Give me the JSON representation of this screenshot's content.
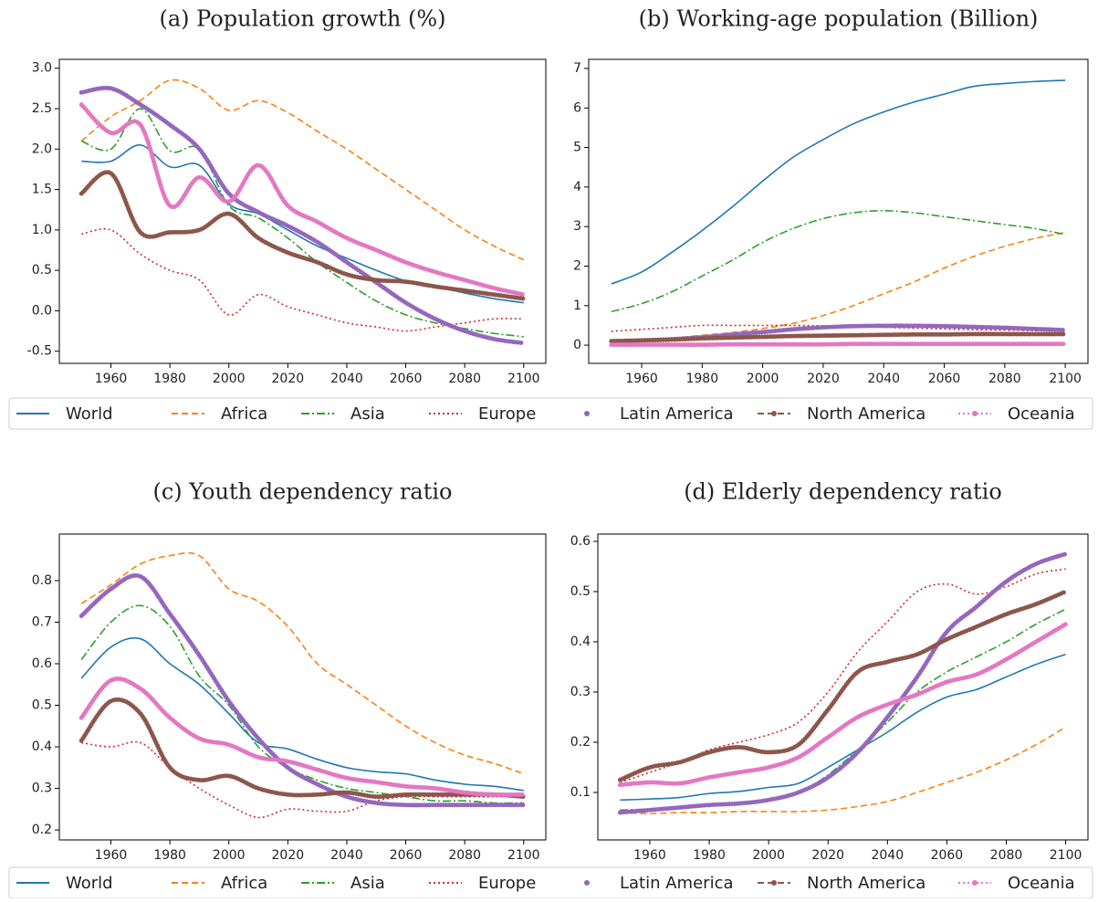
{
  "chart_data": [
    {
      "type": "line",
      "title": "(a) Population growth (%)",
      "x": [
        1950,
        1960,
        1970,
        1980,
        1990,
        2000,
        2010,
        2020,
        2030,
        2040,
        2050,
        2060,
        2070,
        2080,
        2090,
        2100
      ],
      "xlim": [
        1942.5,
        2107.5
      ],
      "xticks": [
        1960,
        1980,
        2000,
        2020,
        2040,
        2060,
        2080,
        2100
      ],
      "ylim": [
        -0.65,
        3.11
      ],
      "yticks": [
        -0.5,
        {
          "value": 0,
          "label": "0.0"
        },
        0.5,
        {
          "value": 1,
          "label": "1.0"
        },
        1.5,
        {
          "value": 2,
          "label": "2.0"
        },
        2.5,
        {
          "value": 3,
          "label": "3.0"
        }
      ],
      "legend": "lower center",
      "series": [
        {
          "name": "World",
          "color": "#1f77b4",
          "linestyle": "solid",
          "marker": false,
          "values": [
            1.85,
            1.85,
            2.05,
            1.78,
            1.8,
            1.32,
            1.2,
            1.0,
            0.8,
            0.65,
            0.5,
            0.37,
            0.3,
            0.22,
            0.15,
            0.1
          ]
        },
        {
          "name": "Africa",
          "color": "#ff7f0e",
          "linestyle": "dashed",
          "marker": false,
          "values": [
            2.1,
            2.4,
            2.6,
            2.85,
            2.75,
            2.48,
            2.6,
            2.45,
            2.22,
            2.0,
            1.75,
            1.5,
            1.25,
            1.0,
            0.8,
            0.63
          ]
        },
        {
          "name": "Asia",
          "color": "#2ca02c",
          "linestyle": "dashdot",
          "marker": false,
          "values": [
            2.1,
            2.0,
            2.5,
            1.98,
            2.0,
            1.3,
            1.15,
            0.9,
            0.6,
            0.35,
            0.12,
            -0.05,
            -0.15,
            -0.22,
            -0.28,
            -0.32
          ]
        },
        {
          "name": "Europe",
          "color": "#d62728",
          "linestyle": "dotted",
          "marker": false,
          "values": [
            0.95,
            1.0,
            0.7,
            0.5,
            0.38,
            -0.05,
            0.2,
            0.05,
            -0.05,
            -0.15,
            -0.2,
            -0.25,
            -0.2,
            -0.15,
            -0.1,
            -0.1
          ]
        },
        {
          "name": "Latin America",
          "color": "#9467bd",
          "linestyle": "none",
          "marker": true,
          "values": [
            2.7,
            2.75,
            2.55,
            2.3,
            2.0,
            1.45,
            1.22,
            1.05,
            0.85,
            0.6,
            0.35,
            0.1,
            -0.1,
            -0.25,
            -0.35,
            -0.4
          ]
        },
        {
          "name": "North America",
          "color": "#8c564b",
          "linestyle": "dashed",
          "marker": true,
          "values": [
            1.45,
            1.7,
            0.97,
            0.97,
            1.0,
            1.2,
            0.9,
            0.72,
            0.6,
            0.45,
            0.38,
            0.36,
            0.3,
            0.25,
            0.2,
            0.15
          ]
        },
        {
          "name": "Oceania",
          "color": "#e377c2",
          "linestyle": "dotted",
          "marker": true,
          "values": [
            2.55,
            2.2,
            2.3,
            1.3,
            1.65,
            1.35,
            1.8,
            1.3,
            1.1,
            0.9,
            0.75,
            0.6,
            0.48,
            0.38,
            0.28,
            0.2
          ]
        }
      ]
    },
    {
      "type": "line",
      "title": "(b) Working-age population (Billion)",
      "x": [
        1950,
        1960,
        1970,
        1980,
        1990,
        2000,
        2010,
        2020,
        2030,
        2040,
        2050,
        2060,
        2070,
        2080,
        2090,
        2100
      ],
      "xlim": [
        1942.5,
        2107.5
      ],
      "xticks": [
        1960,
        1980,
        2000,
        2020,
        2040,
        2060,
        2080,
        2100
      ],
      "ylim": [
        -0.46,
        7.23
      ],
      "yticks": [
        0,
        1,
        2,
        3,
        4,
        5,
        6,
        7
      ],
      "series": [
        {
          "name": "World",
          "color": "#1f77b4",
          "linestyle": "solid",
          "marker": false,
          "values": [
            1.55,
            1.85,
            2.35,
            2.9,
            3.5,
            4.15,
            4.75,
            5.2,
            5.6,
            5.9,
            6.15,
            6.35,
            6.55,
            6.62,
            6.67,
            6.7
          ]
        },
        {
          "name": "Africa",
          "color": "#ff7f0e",
          "linestyle": "dashed",
          "marker": false,
          "values": [
            0.12,
            0.15,
            0.18,
            0.25,
            0.32,
            0.42,
            0.55,
            0.75,
            1.0,
            1.3,
            1.6,
            1.95,
            2.25,
            2.5,
            2.7,
            2.85
          ]
        },
        {
          "name": "Asia",
          "color": "#2ca02c",
          "linestyle": "dashdot",
          "marker": false,
          "values": [
            0.85,
            1.05,
            1.35,
            1.75,
            2.15,
            2.6,
            2.95,
            3.2,
            3.35,
            3.4,
            3.35,
            3.25,
            3.15,
            3.05,
            2.95,
            2.8
          ]
        },
        {
          "name": "Europe",
          "color": "#d62728",
          "linestyle": "dotted",
          "marker": false,
          "values": [
            0.35,
            0.4,
            0.45,
            0.5,
            0.5,
            0.5,
            0.5,
            0.49,
            0.47,
            0.45,
            0.43,
            0.41,
            0.39,
            0.38,
            0.37,
            0.36
          ]
        },
        {
          "name": "Latin America",
          "color": "#9467bd",
          "linestyle": "none",
          "marker": true,
          "values": [
            0.1,
            0.12,
            0.15,
            0.2,
            0.27,
            0.33,
            0.4,
            0.45,
            0.48,
            0.49,
            0.49,
            0.48,
            0.46,
            0.44,
            0.41,
            0.38
          ]
        },
        {
          "name": "North America",
          "color": "#8c564b",
          "linestyle": "dashed",
          "marker": true,
          "values": [
            0.1,
            0.12,
            0.14,
            0.17,
            0.19,
            0.21,
            0.23,
            0.24,
            0.25,
            0.26,
            0.27,
            0.27,
            0.28,
            0.28,
            0.28,
            0.28
          ]
        },
        {
          "name": "Oceania",
          "color": "#e377c2",
          "linestyle": "dotted",
          "marker": true,
          "values": [
            0.01,
            0.01,
            0.01,
            0.01,
            0.02,
            0.02,
            0.02,
            0.02,
            0.03,
            0.03,
            0.03,
            0.03,
            0.03,
            0.03,
            0.03,
            0.03
          ]
        }
      ]
    },
    {
      "type": "line",
      "title": "(c) Youth dependency ratio",
      "x": [
        1950,
        1960,
        1970,
        1980,
        1990,
        2000,
        2010,
        2020,
        2030,
        2040,
        2050,
        2060,
        2070,
        2080,
        2090,
        2100
      ],
      "xlim": [
        1942.5,
        2107.5
      ],
      "xticks": [
        1960,
        1980,
        2000,
        2020,
        2040,
        2060,
        2080,
        2100
      ],
      "ylim": [
        0.176,
        0.912
      ],
      "yticks": [
        0.2,
        0.3,
        0.4,
        0.5,
        0.6,
        0.7,
        0.8
      ],
      "legend": "lower center",
      "series": [
        {
          "name": "World",
          "color": "#1f77b4",
          "linestyle": "solid",
          "marker": false,
          "values": [
            0.565,
            0.64,
            0.66,
            0.6,
            0.55,
            0.48,
            0.41,
            0.395,
            0.37,
            0.35,
            0.34,
            0.335,
            0.32,
            0.31,
            0.305,
            0.295
          ]
        },
        {
          "name": "Africa",
          "color": "#ff7f0e",
          "linestyle": "dashed",
          "marker": false,
          "values": [
            0.745,
            0.79,
            0.84,
            0.86,
            0.86,
            0.78,
            0.75,
            0.69,
            0.6,
            0.55,
            0.5,
            0.45,
            0.41,
            0.38,
            0.36,
            0.335
          ]
        },
        {
          "name": "Asia",
          "color": "#2ca02c",
          "linestyle": "dashdot",
          "marker": false,
          "values": [
            0.61,
            0.7,
            0.74,
            0.69,
            0.57,
            0.5,
            0.4,
            0.35,
            0.32,
            0.3,
            0.29,
            0.28,
            0.27,
            0.27,
            0.265,
            0.265
          ]
        },
        {
          "name": "Europe",
          "color": "#d62728",
          "linestyle": "dotted",
          "marker": false,
          "values": [
            0.41,
            0.4,
            0.41,
            0.35,
            0.3,
            0.26,
            0.23,
            0.25,
            0.245,
            0.245,
            0.27,
            0.28,
            0.28,
            0.28,
            0.28,
            0.28
          ]
        },
        {
          "name": "Latin America",
          "color": "#9467bd",
          "linestyle": "none",
          "marker": true,
          "values": [
            0.715,
            0.78,
            0.81,
            0.72,
            0.62,
            0.51,
            0.42,
            0.35,
            0.31,
            0.28,
            0.265,
            0.26,
            0.26,
            0.26,
            0.26,
            0.26
          ]
        },
        {
          "name": "North America",
          "color": "#8c564b",
          "linestyle": "dashed",
          "marker": true,
          "values": [
            0.415,
            0.51,
            0.48,
            0.35,
            0.32,
            0.33,
            0.3,
            0.285,
            0.285,
            0.29,
            0.28,
            0.285,
            0.285,
            0.285,
            0.285,
            0.28
          ]
        },
        {
          "name": "Oceania",
          "color": "#e377c2",
          "linestyle": "dotted",
          "marker": true,
          "values": [
            0.47,
            0.56,
            0.54,
            0.47,
            0.42,
            0.405,
            0.375,
            0.365,
            0.345,
            0.325,
            0.315,
            0.305,
            0.3,
            0.29,
            0.285,
            0.285
          ]
        }
      ]
    },
    {
      "type": "line",
      "title": "(d) Elderly dependency ratio",
      "x": [
        1950,
        1960,
        1970,
        1980,
        1990,
        2000,
        2010,
        2020,
        2030,
        2040,
        2050,
        2060,
        2070,
        2080,
        2090,
        2100
      ],
      "xlim": [
        1942.5,
        2107.5
      ],
      "xticks": [
        1960,
        1980,
        2000,
        2020,
        2040,
        2060,
        2080,
        2100
      ],
      "ylim": [
        0.0055,
        0.6145
      ],
      "yticks": [
        0.1,
        0.2,
        0.3,
        0.4,
        0.5,
        0.6
      ],
      "series": [
        {
          "name": "World",
          "color": "#1f77b4",
          "linestyle": "solid",
          "marker": false,
          "values": [
            0.085,
            0.087,
            0.09,
            0.098,
            0.102,
            0.11,
            0.118,
            0.15,
            0.185,
            0.22,
            0.26,
            0.29,
            0.305,
            0.33,
            0.355,
            0.375
          ]
        },
        {
          "name": "Africa",
          "color": "#ff7f0e",
          "linestyle": "dashed",
          "marker": false,
          "values": [
            0.06,
            0.058,
            0.06,
            0.06,
            0.062,
            0.062,
            0.062,
            0.065,
            0.072,
            0.082,
            0.1,
            0.12,
            0.14,
            0.165,
            0.195,
            0.23
          ]
        },
        {
          "name": "Asia",
          "color": "#2ca02c",
          "linestyle": "dashdot",
          "marker": false,
          "values": [
            0.065,
            0.067,
            0.07,
            0.075,
            0.078,
            0.085,
            0.1,
            0.135,
            0.185,
            0.24,
            0.3,
            0.34,
            0.37,
            0.4,
            0.435,
            0.465
          ]
        },
        {
          "name": "Europe",
          "color": "#d62728",
          "linestyle": "dotted",
          "marker": false,
          "values": [
            0.12,
            0.14,
            0.16,
            0.185,
            0.2,
            0.215,
            0.24,
            0.3,
            0.38,
            0.44,
            0.5,
            0.515,
            0.495,
            0.51,
            0.535,
            0.545
          ]
        },
        {
          "name": "Latin America",
          "color": "#9467bd",
          "linestyle": "none",
          "marker": true,
          "values": [
            0.06,
            0.065,
            0.07,
            0.075,
            0.078,
            0.085,
            0.1,
            0.13,
            0.18,
            0.25,
            0.33,
            0.42,
            0.47,
            0.52,
            0.555,
            0.575
          ]
        },
        {
          "name": "North America",
          "color": "#8c564b",
          "linestyle": "dashed",
          "marker": true,
          "values": [
            0.125,
            0.15,
            0.16,
            0.18,
            0.19,
            0.18,
            0.195,
            0.265,
            0.34,
            0.36,
            0.375,
            0.405,
            0.43,
            0.455,
            0.475,
            0.5
          ]
        },
        {
          "name": "Oceania",
          "color": "#e377c2",
          "linestyle": "dotted",
          "marker": true,
          "values": [
            0.115,
            0.12,
            0.118,
            0.13,
            0.14,
            0.15,
            0.17,
            0.21,
            0.25,
            0.275,
            0.295,
            0.32,
            0.335,
            0.365,
            0.4,
            0.435
          ]
        }
      ]
    }
  ]
}
